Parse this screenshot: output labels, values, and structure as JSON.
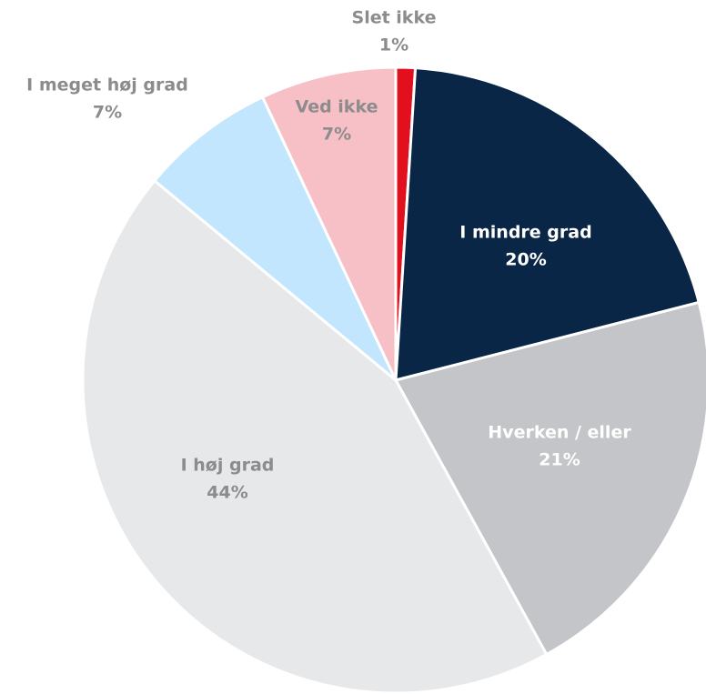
{
  "chart_data": {
    "type": "pie",
    "categories": [
      "Slet ikke",
      "I mindre grad",
      "Hverken / eller",
      "I høj grad",
      "I meget høj grad",
      "Ved ikke"
    ],
    "values": [
      1,
      20,
      21,
      44,
      7,
      7
    ],
    "value_labels": [
      "1%",
      "20%",
      "21%",
      "44%",
      "7%",
      "7%"
    ],
    "colors": [
      "#e0101e",
      "#0a2646",
      "#c4c5c8",
      "#e7e8ea",
      "#c2e6fd",
      "#f7c0c6"
    ]
  }
}
